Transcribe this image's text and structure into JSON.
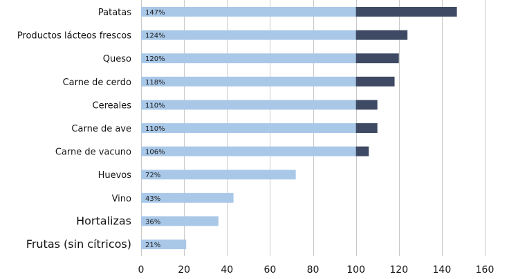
{
  "chart_data": {
    "type": "bar",
    "orientation": "horizontal",
    "categories": [
      "Patatas",
      "Productos lácteos frescos",
      "Queso",
      "Carne de cerdo",
      "Cereales",
      "Carne de ave",
      "Carne de vacuno",
      "Huevos",
      "Vino",
      "Hortalizas",
      "Frutas (sin cítricos)"
    ],
    "values": [
      147,
      124,
      120,
      118,
      110,
      110,
      106,
      72,
      43,
      36,
      21
    ],
    "value_labels": [
      "147%",
      "124%",
      "120%",
      "118%",
      "110%",
      "110%",
      "106%",
      "72%",
      "43%",
      "36%",
      "21%"
    ],
    "threshold": 100,
    "xlim": [
      0,
      160
    ],
    "xticks": [
      0,
      20,
      40,
      60,
      80,
      100,
      120,
      140,
      160
    ],
    "grid": "vertical",
    "colors": {
      "below_threshold": "#a9c8e8",
      "above_threshold": "#3e4a63",
      "grid": "#c8c8c8"
    }
  }
}
